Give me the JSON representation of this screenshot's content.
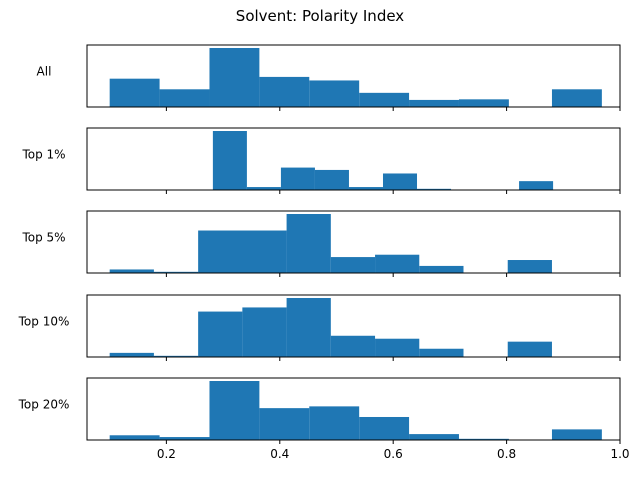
{
  "chart_data": {
    "type": "bar",
    "title": "Solvent: Polarity Index",
    "xlabel": "",
    "ylabel": "",
    "xlim": [
      0.06,
      1.0
    ],
    "grid": false,
    "bar_color": "#1f77b4",
    "x_tick_labels": [
      "0.2",
      "0.4",
      "0.6",
      "0.8",
      "1.0"
    ],
    "x_ticks": [
      0.2,
      0.4,
      0.6,
      0.8,
      1.0
    ],
    "panels": [
      {
        "name": "All",
        "bins": [
          [
            0.1,
            0.188,
            0.48
          ],
          [
            0.188,
            0.276,
            0.3
          ],
          [
            0.276,
            0.364,
            1.0
          ],
          [
            0.364,
            0.452,
            0.51
          ],
          [
            0.452,
            0.54,
            0.45
          ],
          [
            0.54,
            0.628,
            0.24
          ],
          [
            0.628,
            0.716,
            0.12
          ],
          [
            0.716,
            0.804,
            0.13
          ],
          [
            0.88,
            0.968,
            0.3
          ]
        ]
      },
      {
        "name": "Top 1%",
        "bins": [
          [
            0.282,
            0.342,
            1.0
          ],
          [
            0.342,
            0.402,
            0.05
          ],
          [
            0.402,
            0.462,
            0.38
          ],
          [
            0.462,
            0.522,
            0.34
          ],
          [
            0.522,
            0.582,
            0.05
          ],
          [
            0.582,
            0.642,
            0.28
          ],
          [
            0.642,
            0.702,
            0.02
          ],
          [
            0.822,
            0.882,
            0.15
          ]
        ]
      },
      {
        "name": "Top 5%",
        "bins": [
          [
            0.1,
            0.178,
            0.06
          ],
          [
            0.178,
            0.256,
            0.02
          ],
          [
            0.256,
            0.412,
            0.72
          ],
          [
            0.412,
            0.49,
            1.0
          ],
          [
            0.49,
            0.568,
            0.27
          ],
          [
            0.568,
            0.646,
            0.31
          ],
          [
            0.646,
            0.724,
            0.12
          ],
          [
            0.802,
            0.88,
            0.22
          ]
        ]
      },
      {
        "name": "Top 10%",
        "bins": [
          [
            0.1,
            0.178,
            0.07
          ],
          [
            0.178,
            0.256,
            0.02
          ],
          [
            0.256,
            0.334,
            0.77
          ],
          [
            0.334,
            0.412,
            0.84
          ],
          [
            0.412,
            0.49,
            1.0
          ],
          [
            0.49,
            0.568,
            0.36
          ],
          [
            0.568,
            0.646,
            0.31
          ],
          [
            0.646,
            0.724,
            0.14
          ],
          [
            0.802,
            0.88,
            0.26
          ]
        ]
      },
      {
        "name": "Top 20%",
        "bins": [
          [
            0.1,
            0.188,
            0.08
          ],
          [
            0.188,
            0.276,
            0.05
          ],
          [
            0.276,
            0.364,
            1.0
          ],
          [
            0.364,
            0.452,
            0.54
          ],
          [
            0.452,
            0.54,
            0.57
          ],
          [
            0.54,
            0.628,
            0.39
          ],
          [
            0.628,
            0.716,
            0.1
          ],
          [
            0.716,
            0.804,
            0.02
          ],
          [
            0.88,
            0.968,
            0.18
          ]
        ]
      }
    ]
  }
}
